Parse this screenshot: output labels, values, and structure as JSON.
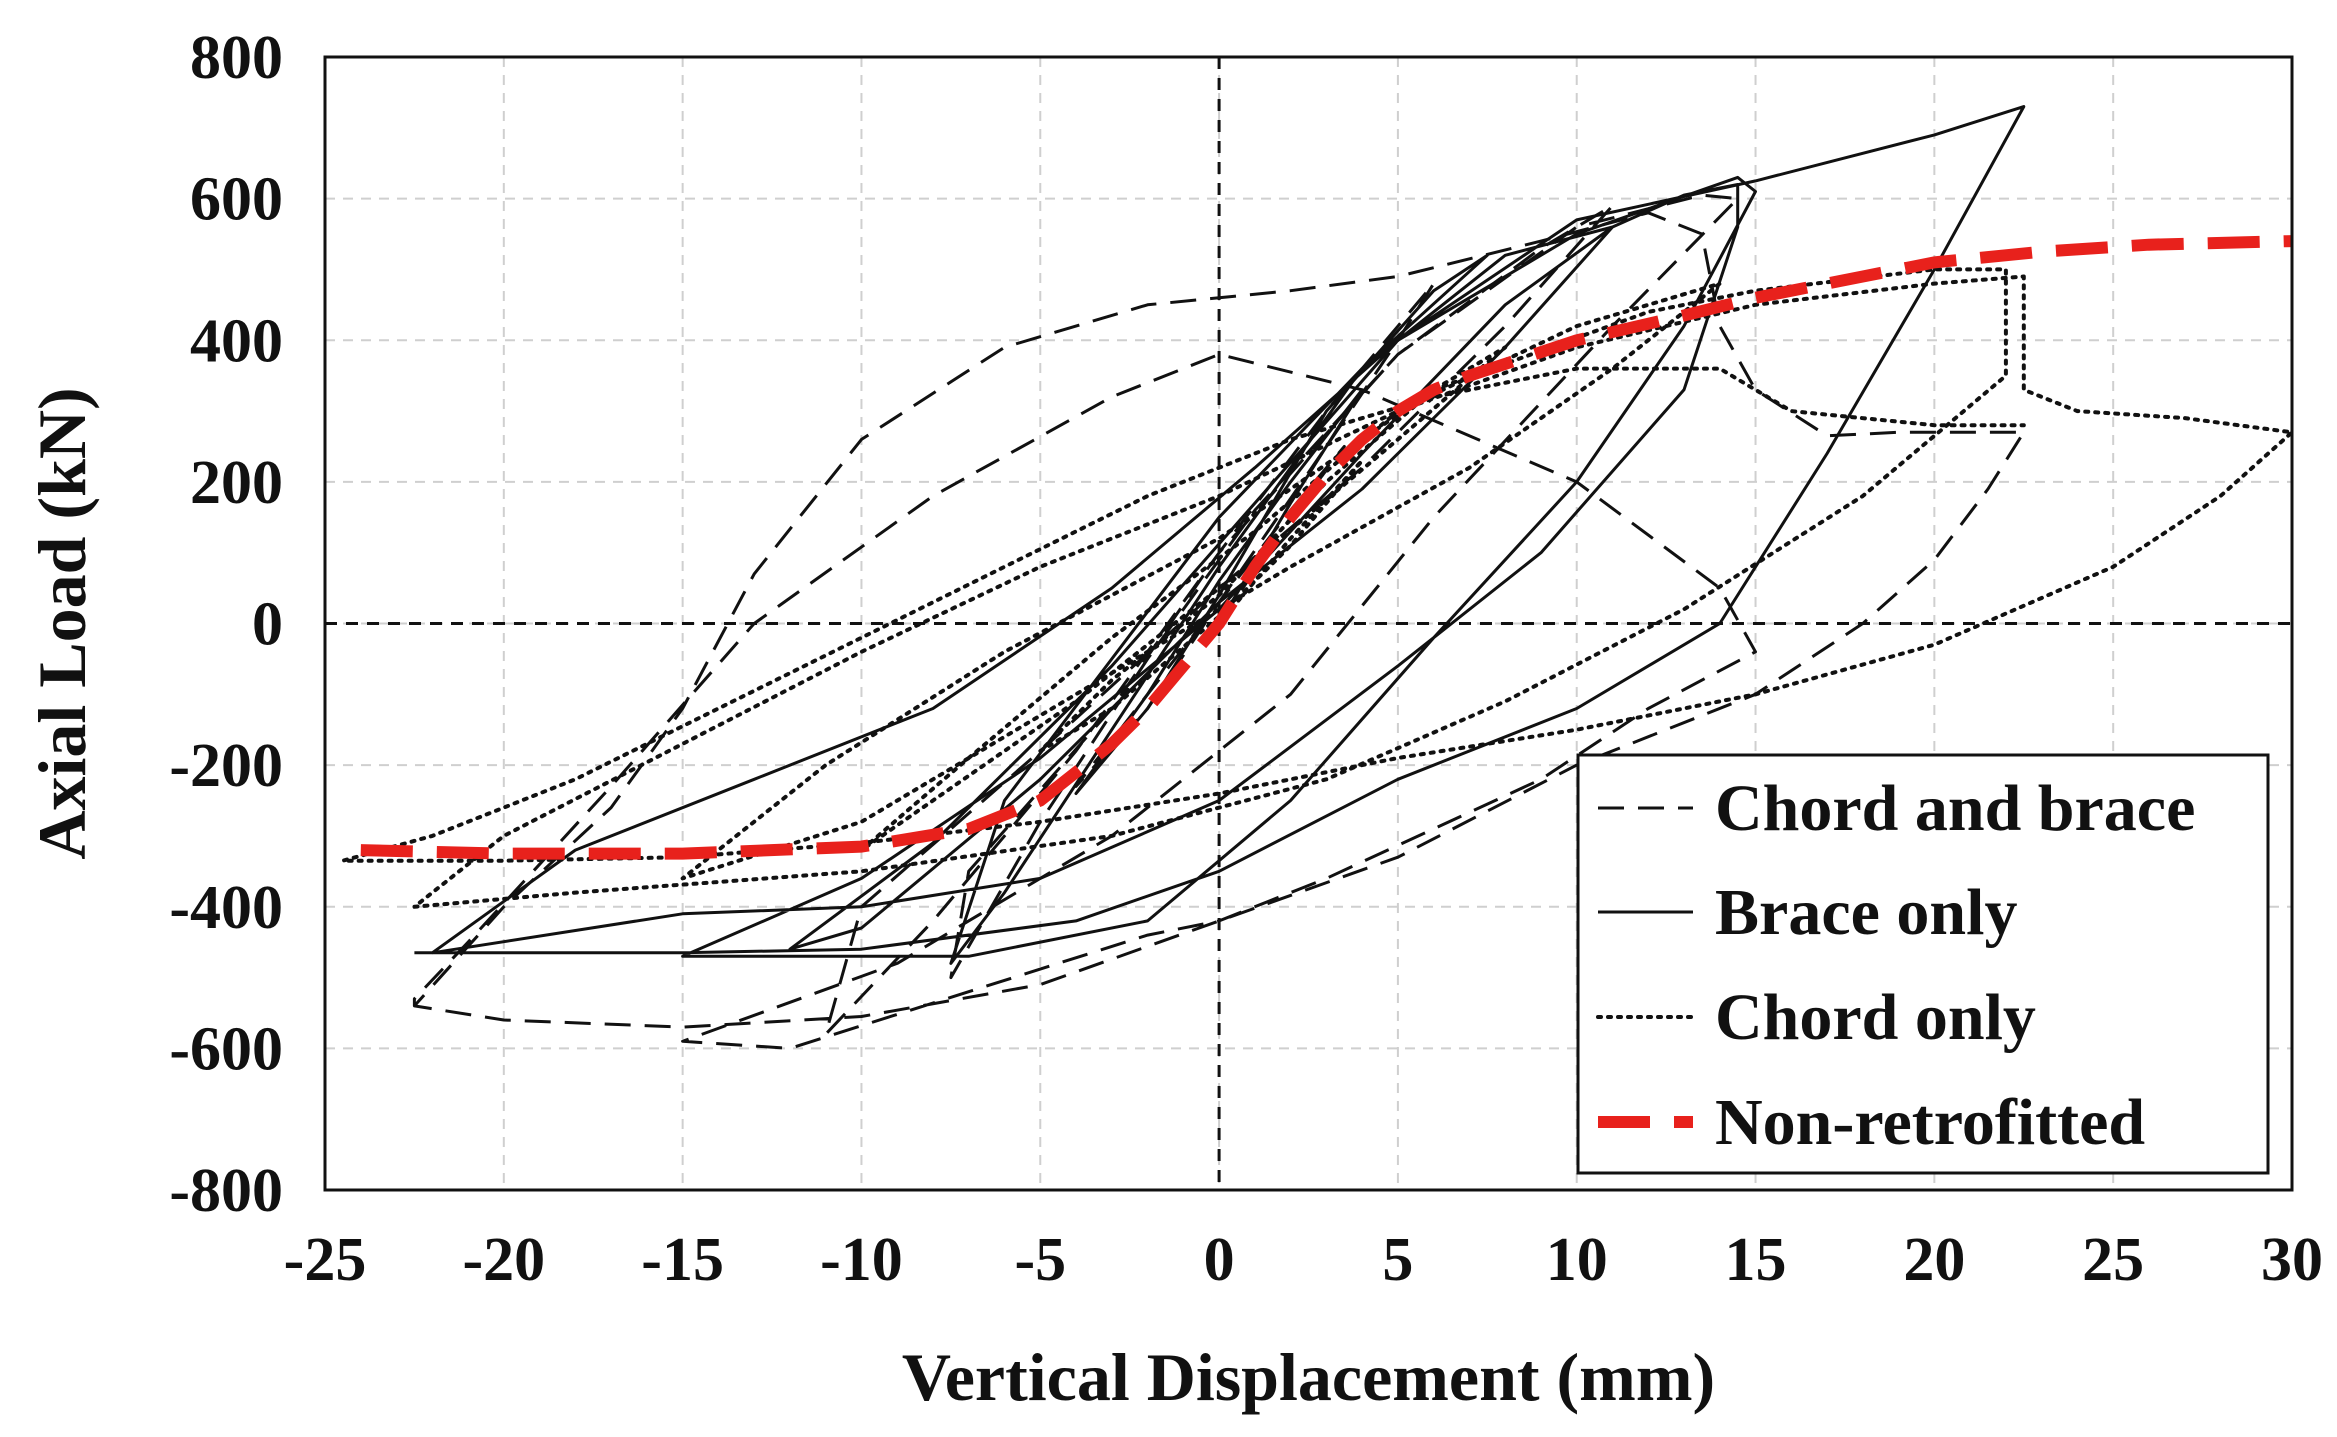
{
  "chart_data": {
    "type": "line",
    "title": "",
    "xlabel": "Vertical Displacement (mm)",
    "ylabel": "Axial Load (kN)",
    "xlim": [
      -25,
      30
    ],
    "ylim": [
      -800,
      800
    ],
    "xticks": [
      -25,
      -20,
      -15,
      -10,
      -5,
      0,
      5,
      10,
      15,
      20,
      25,
      30
    ],
    "yticks": [
      800,
      600,
      400,
      200,
      0,
      -200,
      -400,
      -600,
      -800
    ],
    "xtick_labels": [
      "-25",
      "-20",
      "-15",
      "-10",
      "-5",
      "0",
      "5",
      "10",
      "15",
      "20",
      "25",
      "30"
    ],
    "ytick_labels": [
      "800",
      "600",
      "400",
      "200",
      "0",
      "-200",
      "-400",
      "-600",
      "-800"
    ],
    "grid": true,
    "legend_position": "bottom-right",
    "colors": {
      "black": "#111111",
      "red": "#e8211c"
    },
    "series": [
      {
        "name": "Chord and brace",
        "style": "dashed",
        "color": "#111111",
        "points": [
          [
            0,
            0
          ],
          [
            2,
            150
          ],
          [
            3.5,
            250
          ],
          [
            2,
            160
          ],
          [
            0,
            30
          ],
          [
            -2,
            -120
          ],
          [
            -4,
            -230
          ],
          [
            -2,
            -100
          ],
          [
            0,
            30
          ],
          [
            3,
            250
          ],
          [
            5,
            400
          ],
          [
            6,
            480
          ],
          [
            3,
            300
          ],
          [
            0,
            100
          ],
          [
            -3,
            -120
          ],
          [
            -7,
            -350
          ],
          [
            -7.5,
            -500
          ],
          [
            -5,
            -280
          ],
          [
            -2,
            -50
          ],
          [
            1,
            160
          ],
          [
            5,
            380
          ],
          [
            9,
            530
          ],
          [
            11,
            590
          ],
          [
            8,
            420
          ],
          [
            4,
            220
          ],
          [
            0,
            50
          ],
          [
            -5,
            -180
          ],
          [
            -10,
            -400
          ],
          [
            -11,
            -580
          ],
          [
            -8,
            -420
          ],
          [
            -4,
            -180
          ],
          [
            0,
            100
          ],
          [
            5,
            380
          ],
          [
            10,
            560
          ],
          [
            13.5,
            605
          ],
          [
            14.5,
            600
          ],
          [
            11,
            420
          ],
          [
            6,
            150
          ],
          [
            2,
            -100
          ],
          [
            -3,
            -300
          ],
          [
            -9,
            -480
          ],
          [
            -15,
            -590
          ],
          [
            -12,
            -600
          ],
          [
            -7,
            -520
          ],
          [
            -2,
            -440
          ],
          [
            0,
            -420
          ],
          [
            3,
            -360
          ],
          [
            9,
            -220
          ],
          [
            12,
            -120
          ],
          [
            15,
            -40
          ],
          [
            14,
            50
          ],
          [
            10,
            200
          ],
          [
            4,
            330
          ],
          [
            0,
            380
          ],
          [
            -3,
            320
          ],
          [
            -8,
            180
          ],
          [
            -13,
            0
          ],
          [
            -17,
            -230
          ],
          [
            -21,
            -450
          ],
          [
            -22.5,
            -530
          ],
          [
            -22.5,
            -540
          ],
          [
            -20,
            -560
          ],
          [
            -15,
            -570
          ],
          [
            -10,
            -555
          ],
          [
            -5,
            -510
          ],
          [
            0,
            -420
          ],
          [
            5,
            -330
          ],
          [
            10,
            -200
          ],
          [
            15,
            -100
          ],
          [
            18,
            0
          ],
          [
            20,
            90
          ],
          [
            21.5,
            190
          ],
          [
            22.5,
            270
          ],
          [
            19,
            270
          ],
          [
            17,
            265
          ],
          [
            15,
            330
          ],
          [
            14,
            420
          ],
          [
            13.5,
            550
          ],
          [
            12,
            580
          ],
          [
            9,
            540
          ],
          [
            5,
            490
          ],
          [
            2,
            470
          ],
          [
            -2,
            450
          ],
          [
            -6,
            390
          ],
          [
            -10,
            260
          ],
          [
            -13,
            70
          ],
          [
            -15,
            -120
          ],
          [
            -17,
            -260
          ],
          [
            -20,
            -400
          ],
          [
            -22.5,
            -540
          ]
        ]
      },
      {
        "name": "Brace only",
        "style": "solid",
        "color": "#111111",
        "points": [
          [
            0,
            0
          ],
          [
            2,
            170
          ],
          [
            4,
            330
          ],
          [
            2,
            200
          ],
          [
            0,
            60
          ],
          [
            -2,
            -100
          ],
          [
            -4,
            -240
          ],
          [
            -2,
            -120
          ],
          [
            0,
            40
          ],
          [
            3,
            300
          ],
          [
            6,
            470
          ],
          [
            7.5,
            520
          ],
          [
            4,
            360
          ],
          [
            0,
            150
          ],
          [
            -3,
            -50
          ],
          [
            -6,
            -250
          ],
          [
            -7.5,
            -480
          ],
          [
            -6,
            -380
          ],
          [
            -3,
            -150
          ],
          [
            0,
            80
          ],
          [
            4,
            360
          ],
          [
            8,
            520
          ],
          [
            11,
            560
          ],
          [
            8,
            390
          ],
          [
            4,
            190
          ],
          [
            0,
            30
          ],
          [
            -5,
            -220
          ],
          [
            -10,
            -430
          ],
          [
            -12,
            -460
          ],
          [
            -8,
            -310
          ],
          [
            -3,
            -60
          ],
          [
            1,
            170
          ],
          [
            5,
            400
          ],
          [
            10,
            550
          ],
          [
            14.5,
            630
          ],
          [
            15,
            610
          ],
          [
            13,
            420
          ],
          [
            10,
            200
          ],
          [
            6,
            -20
          ],
          [
            2,
            -250
          ],
          [
            -2,
            -420
          ],
          [
            -7,
            -470
          ],
          [
            -15,
            -470
          ],
          [
            -10,
            -360
          ],
          [
            -5,
            -190
          ],
          [
            0,
            20
          ],
          [
            4,
            240
          ],
          [
            8,
            450
          ],
          [
            11,
            560
          ],
          [
            13,
            605
          ],
          [
            14.5,
            620
          ],
          [
            14.5,
            560
          ],
          [
            13,
            330
          ],
          [
            9,
            100
          ],
          [
            5,
            -60
          ],
          [
            0,
            -250
          ],
          [
            -5,
            -360
          ],
          [
            -10,
            -400
          ],
          [
            -15,
            -410
          ],
          [
            -22,
            -465
          ],
          [
            -18,
            -320
          ],
          [
            -13,
            -220
          ],
          [
            -8,
            -120
          ],
          [
            -3,
            50
          ],
          [
            1,
            220
          ],
          [
            5,
            400
          ],
          [
            10,
            570
          ],
          [
            15,
            625
          ],
          [
            20,
            690
          ],
          [
            22.5,
            730
          ],
          [
            20,
            500
          ],
          [
            17,
            240
          ],
          [
            14,
            0
          ],
          [
            10,
            -120
          ],
          [
            5,
            -220
          ],
          [
            0,
            -350
          ],
          [
            -4,
            -420
          ],
          [
            -10,
            -460
          ],
          [
            -15,
            -465
          ],
          [
            -22.5,
            -465
          ]
        ]
      },
      {
        "name": "Chord only",
        "style": "dotted",
        "color": "#111111",
        "points": [
          [
            0,
            0
          ],
          [
            2,
            120
          ],
          [
            4,
            230
          ],
          [
            2,
            110
          ],
          [
            0,
            10
          ],
          [
            -3,
            -120
          ],
          [
            -5,
            -180
          ],
          [
            -3,
            -80
          ],
          [
            0,
            40
          ],
          [
            3,
            200
          ],
          [
            6,
            330
          ],
          [
            8,
            390
          ],
          [
            5,
            260
          ],
          [
            1,
            90
          ],
          [
            -4,
            -110
          ],
          [
            -8,
            -250
          ],
          [
            -10,
            -320
          ],
          [
            -7,
            -190
          ],
          [
            -3,
            -20
          ],
          [
            1,
            130
          ],
          [
            5,
            300
          ],
          [
            10,
            420
          ],
          [
            14,
            480
          ],
          [
            11,
            360
          ],
          [
            7,
            220
          ],
          [
            2,
            80
          ],
          [
            -4,
            -100
          ],
          [
            -10,
            -280
          ],
          [
            -15,
            -360
          ],
          [
            -11,
            -200
          ],
          [
            -6,
            -40
          ],
          [
            0,
            120
          ],
          [
            6,
            330
          ],
          [
            12,
            440
          ],
          [
            15,
            470
          ],
          [
            20,
            500
          ],
          [
            22,
            500
          ],
          [
            22,
            350
          ],
          [
            18,
            180
          ],
          [
            13,
            20
          ],
          [
            8,
            -110
          ],
          [
            3,
            -220
          ],
          [
            -3,
            -300
          ],
          [
            -10,
            -350
          ],
          [
            -18,
            -380
          ],
          [
            -22.5,
            -400
          ],
          [
            -20,
            -300
          ],
          [
            -15,
            -170
          ],
          [
            -10,
            -40
          ],
          [
            -5,
            80
          ],
          [
            0,
            180
          ],
          [
            5,
            300
          ],
          [
            10,
            390
          ],
          [
            15,
            450
          ],
          [
            20,
            480
          ],
          [
            22.5,
            490
          ],
          [
            22.5,
            330
          ],
          [
            24,
            300
          ],
          [
            27,
            290
          ],
          [
            30,
            270
          ],
          [
            28,
            180
          ],
          [
            25,
            80
          ],
          [
            20,
            -30
          ],
          [
            15,
            -100
          ],
          [
            10,
            -150
          ],
          [
            5,
            -190
          ],
          [
            0,
            -240
          ],
          [
            -5,
            -280
          ],
          [
            -10,
            -310
          ],
          [
            -15,
            -330
          ],
          [
            -20,
            -335
          ],
          [
            -24.5,
            -335
          ],
          [
            -22,
            -300
          ],
          [
            -18,
            -220
          ],
          [
            -14,
            -120
          ],
          [
            -10,
            -20
          ],
          [
            -6,
            80
          ],
          [
            -2,
            180
          ],
          [
            2,
            260
          ],
          [
            6,
            320
          ],
          [
            10,
            360
          ],
          [
            14,
            360
          ],
          [
            16,
            300
          ],
          [
            20,
            280
          ],
          [
            22.5,
            280
          ]
        ]
      },
      {
        "name": "Non-retrofitted",
        "style": "thick-dashed",
        "color": "#e8211c",
        "points": [
          [
            -24,
            -320
          ],
          [
            -20,
            -325
          ],
          [
            -15,
            -325
          ],
          [
            -10,
            -315
          ],
          [
            -7,
            -290
          ],
          [
            -5,
            -250
          ],
          [
            -3,
            -170
          ],
          [
            -2,
            -120
          ],
          [
            -1,
            -60
          ],
          [
            0,
            0
          ],
          [
            1,
            80
          ],
          [
            2,
            150
          ],
          [
            3,
            210
          ],
          [
            4,
            260
          ],
          [
            5,
            300
          ],
          [
            6,
            330
          ],
          [
            7,
            350
          ],
          [
            10,
            400
          ],
          [
            13,
            435
          ],
          [
            15,
            460
          ],
          [
            18,
            490
          ],
          [
            20,
            510
          ],
          [
            23,
            525
          ],
          [
            26,
            535
          ],
          [
            30,
            540
          ]
        ]
      }
    ]
  }
}
